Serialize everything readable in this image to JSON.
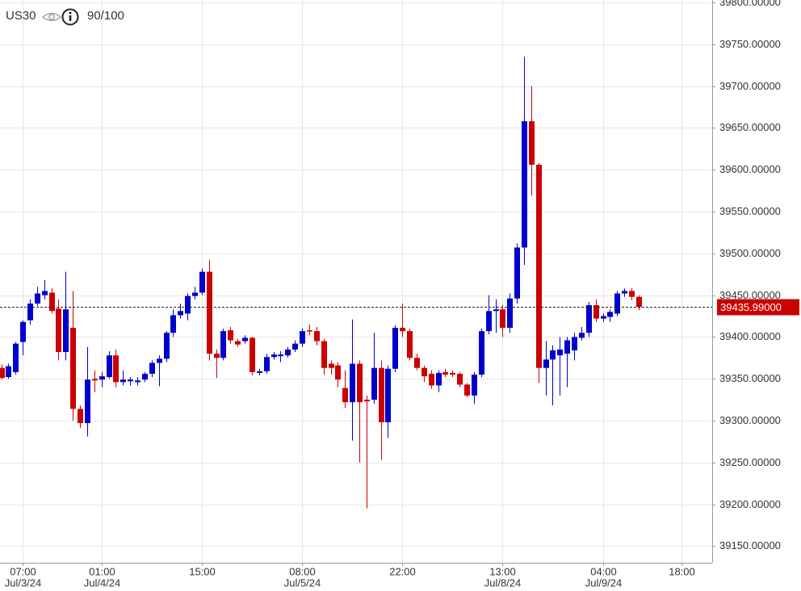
{
  "chart_data": {
    "type": "candlestick",
    "symbol": "US30",
    "score": "90/100",
    "categories": [
      null,
      null,
      null,
      "07:00",
      null,
      null,
      null,
      null,
      null,
      null,
      null,
      null,
      null,
      null,
      "01:00",
      null,
      null,
      null,
      null,
      null,
      null,
      null,
      null,
      null,
      null,
      null,
      null,
      null,
      "15:00",
      null,
      null,
      null,
      null,
      null,
      null,
      null,
      null,
      null,
      null,
      null,
      null,
      null,
      "08:00",
      null,
      null,
      null,
      null,
      null,
      null,
      null,
      null,
      null,
      null,
      null,
      null,
      null,
      "22:00",
      null,
      null,
      null,
      null,
      null,
      null,
      null,
      null,
      null,
      null,
      null,
      null,
      null,
      "13:00",
      null,
      null,
      null,
      null,
      null,
      null,
      null,
      null,
      null,
      null,
      null,
      null,
      null,
      "04:00",
      null,
      null,
      null,
      null,
      null,
      null,
      null,
      null,
      null,
      null,
      "18:00",
      null,
      null,
      null
    ],
    "dates": [
      null,
      null,
      null,
      "Jul/3/24",
      null,
      null,
      null,
      null,
      null,
      null,
      null,
      null,
      null,
      null,
      "Jul/4/24",
      null,
      null,
      null,
      null,
      null,
      null,
      null,
      null,
      null,
      null,
      null,
      null,
      null,
      null,
      null,
      null,
      null,
      null,
      null,
      null,
      null,
      null,
      null,
      null,
      null,
      null,
      null,
      "Jul/5/24",
      null,
      null,
      null,
      null,
      null,
      null,
      null,
      null,
      null,
      null,
      null,
      null,
      null,
      null,
      null,
      null,
      null,
      null,
      null,
      null,
      null,
      null,
      null,
      null,
      null,
      null,
      null,
      "Jul/8/24",
      null,
      null,
      null,
      null,
      null,
      null,
      null,
      null,
      null,
      null,
      null,
      null,
      null,
      "Jul/9/24",
      null,
      null,
      null,
      null,
      null,
      null,
      null,
      null,
      null,
      null,
      null,
      null,
      null,
      null
    ],
    "open": [
      39363,
      39352,
      39358,
      39394,
      39420,
      39440,
      39450,
      39453,
      39434,
      39382,
      39411,
      39314,
      39297,
      39350,
      39349,
      39352,
      39378,
      39346,
      39347,
      39346,
      39349,
      39356,
      39369,
      39374,
      39405,
      39426,
      39428,
      39449,
      39453,
      39478,
      39380,
      39375,
      39408,
      39395,
      39395,
      39399,
      39357,
      39359,
      39376,
      39377,
      39378,
      39385,
      39392,
      39408,
      39407,
      39395,
      39368,
      39366,
      39339,
      39322,
      39368,
      39325,
      39325,
      39363,
      39298,
      39362,
      39411,
      39407,
      39375,
      39363,
      39356,
      39342,
      39358,
      39357,
      39356,
      39343,
      39330,
      39355,
      39407,
      39431,
      39433,
      39411,
      39446,
      39507,
      39658,
      39606,
      39363,
      39373,
      39378,
      39380,
      39384,
      39399,
      39405,
      39438,
      39422,
      39424,
      39428,
      39452,
      39455,
      39448,
      null,
      null,
      null,
      null,
      null,
      null,
      null,
      null,
      null
    ],
    "high": [
      39367,
      39368,
      39394,
      39420,
      39445,
      39460,
      39468,
      39458,
      39445,
      39478,
      39455,
      39318,
      39388,
      39360,
      39358,
      39383,
      39385,
      39360,
      39352,
      39352,
      39358,
      39372,
      39378,
      39407,
      39433,
      39440,
      39452,
      39460,
      39482,
      39492,
      39385,
      39410,
      39412,
      39398,
      39402,
      39400,
      39362,
      39380,
      39382,
      39383,
      39388,
      39396,
      39410,
      39415,
      39412,
      39398,
      39372,
      39370,
      39360,
      39421,
      39372,
      39330,
      39405,
      39372,
      39366,
      39414,
      39440,
      39410,
      39380,
      39366,
      39360,
      39360,
      39362,
      39360,
      39358,
      39345,
      39358,
      39410,
      39450,
      39445,
      39438,
      39452,
      39512,
      39735,
      39700,
      39608,
      39395,
      39390,
      39400,
      39400,
      39405,
      39412,
      39442,
      39445,
      39428,
      39433,
      39455,
      39458,
      39458,
      39450,
      null,
      null,
      null,
      null,
      null,
      null,
      null,
      null,
      null
    ],
    "low": [
      39349,
      39350,
      39355,
      39378,
      39415,
      39437,
      39445,
      39428,
      39372,
      39372,
      39300,
      39291,
      39281,
      39334,
      39340,
      39350,
      39340,
      39342,
      39342,
      39342,
      39346,
      39352,
      39341,
      39370,
      39400,
      39422,
      39420,
      39445,
      39450,
      39372,
      39351,
      39372,
      39392,
      39388,
      39392,
      39354,
      39354,
      39356,
      39373,
      39370,
      39375,
      39382,
      39388,
      39402,
      39390,
      39355,
      39355,
      39340,
      39315,
      39276,
      39250,
      39195,
      39320,
      39253,
      39279,
      39358,
      39400,
      39372,
      39360,
      39346,
      39338,
      39334,
      39352,
      39352,
      39340,
      39328,
      39320,
      39352,
      39403,
      39405,
      39400,
      39405,
      39440,
      39486,
      39569,
      39345,
      39330,
      39318,
      39330,
      39340,
      39372,
      39396,
      39400,
      39418,
      39418,
      39418,
      39425,
      39448,
      39444,
      39432,
      null,
      null,
      null,
      null,
      null,
      null,
      null,
      null,
      null
    ],
    "close": [
      39351,
      39365,
      39392,
      39418,
      39440,
      39452,
      39455,
      39431,
      39382,
      39433,
      39314,
      39297,
      39349,
      39348,
      39353,
      39378,
      39346,
      39349,
      39349,
      39348,
      39356,
      39369,
      39374,
      39405,
      39426,
      39431,
      39449,
      39453,
      39478,
      39380,
      39375,
      39407,
      39396,
      39391,
      39399,
      39358,
      39359,
      39376,
      39379,
      39379,
      39385,
      39392,
      39407,
      39407,
      39395,
      39363,
      39363,
      39349,
      39322,
      39368,
      39322,
      39323,
      39363,
      39298,
      39362,
      39411,
      39407,
      39375,
      39363,
      39353,
      39342,
      39357,
      39355,
      39355,
      39343,
      39330,
      39355,
      39407,
      39431,
      39433,
      39411,
      39446,
      39507,
      39658,
      39606,
      39363,
      39373,
      39384,
      39385,
      39396,
      39400,
      39405,
      39438,
      39422,
      39425,
      39430,
      39452,
      39455,
      39448,
      39436,
      null,
      null,
      null,
      null,
      null,
      null,
      null,
      null,
      null
    ],
    "up_color": "#0000cc",
    "down_color": "#cc0000",
    "current_price": {
      "value": 39435.99,
      "label": "39435.99000"
    },
    "ylim": [
      39130,
      39803
    ],
    "yticks": [
      {
        "value": 39150,
        "label": "39150.00000"
      },
      {
        "value": 39200,
        "label": "39200.00000"
      },
      {
        "value": 39250,
        "label": "39250.00000"
      },
      {
        "value": 39300,
        "label": "39300.00000"
      },
      {
        "value": 39350,
        "label": "39350.00000"
      },
      {
        "value": 39400,
        "label": "39400.00000"
      },
      {
        "value": 39450,
        "label": "39450.00000"
      },
      {
        "value": 39500,
        "label": "39500.00000"
      },
      {
        "value": 39550,
        "label": "39550.00000"
      },
      {
        "value": 39600,
        "label": "39600.00000"
      },
      {
        "value": 39650,
        "label": "39650.00000"
      },
      {
        "value": 39700,
        "label": "39700.00000"
      },
      {
        "value": 39750,
        "label": "39750.00000"
      },
      {
        "value": 39800,
        "label": "39800.00000"
      }
    ],
    "grid": true
  }
}
